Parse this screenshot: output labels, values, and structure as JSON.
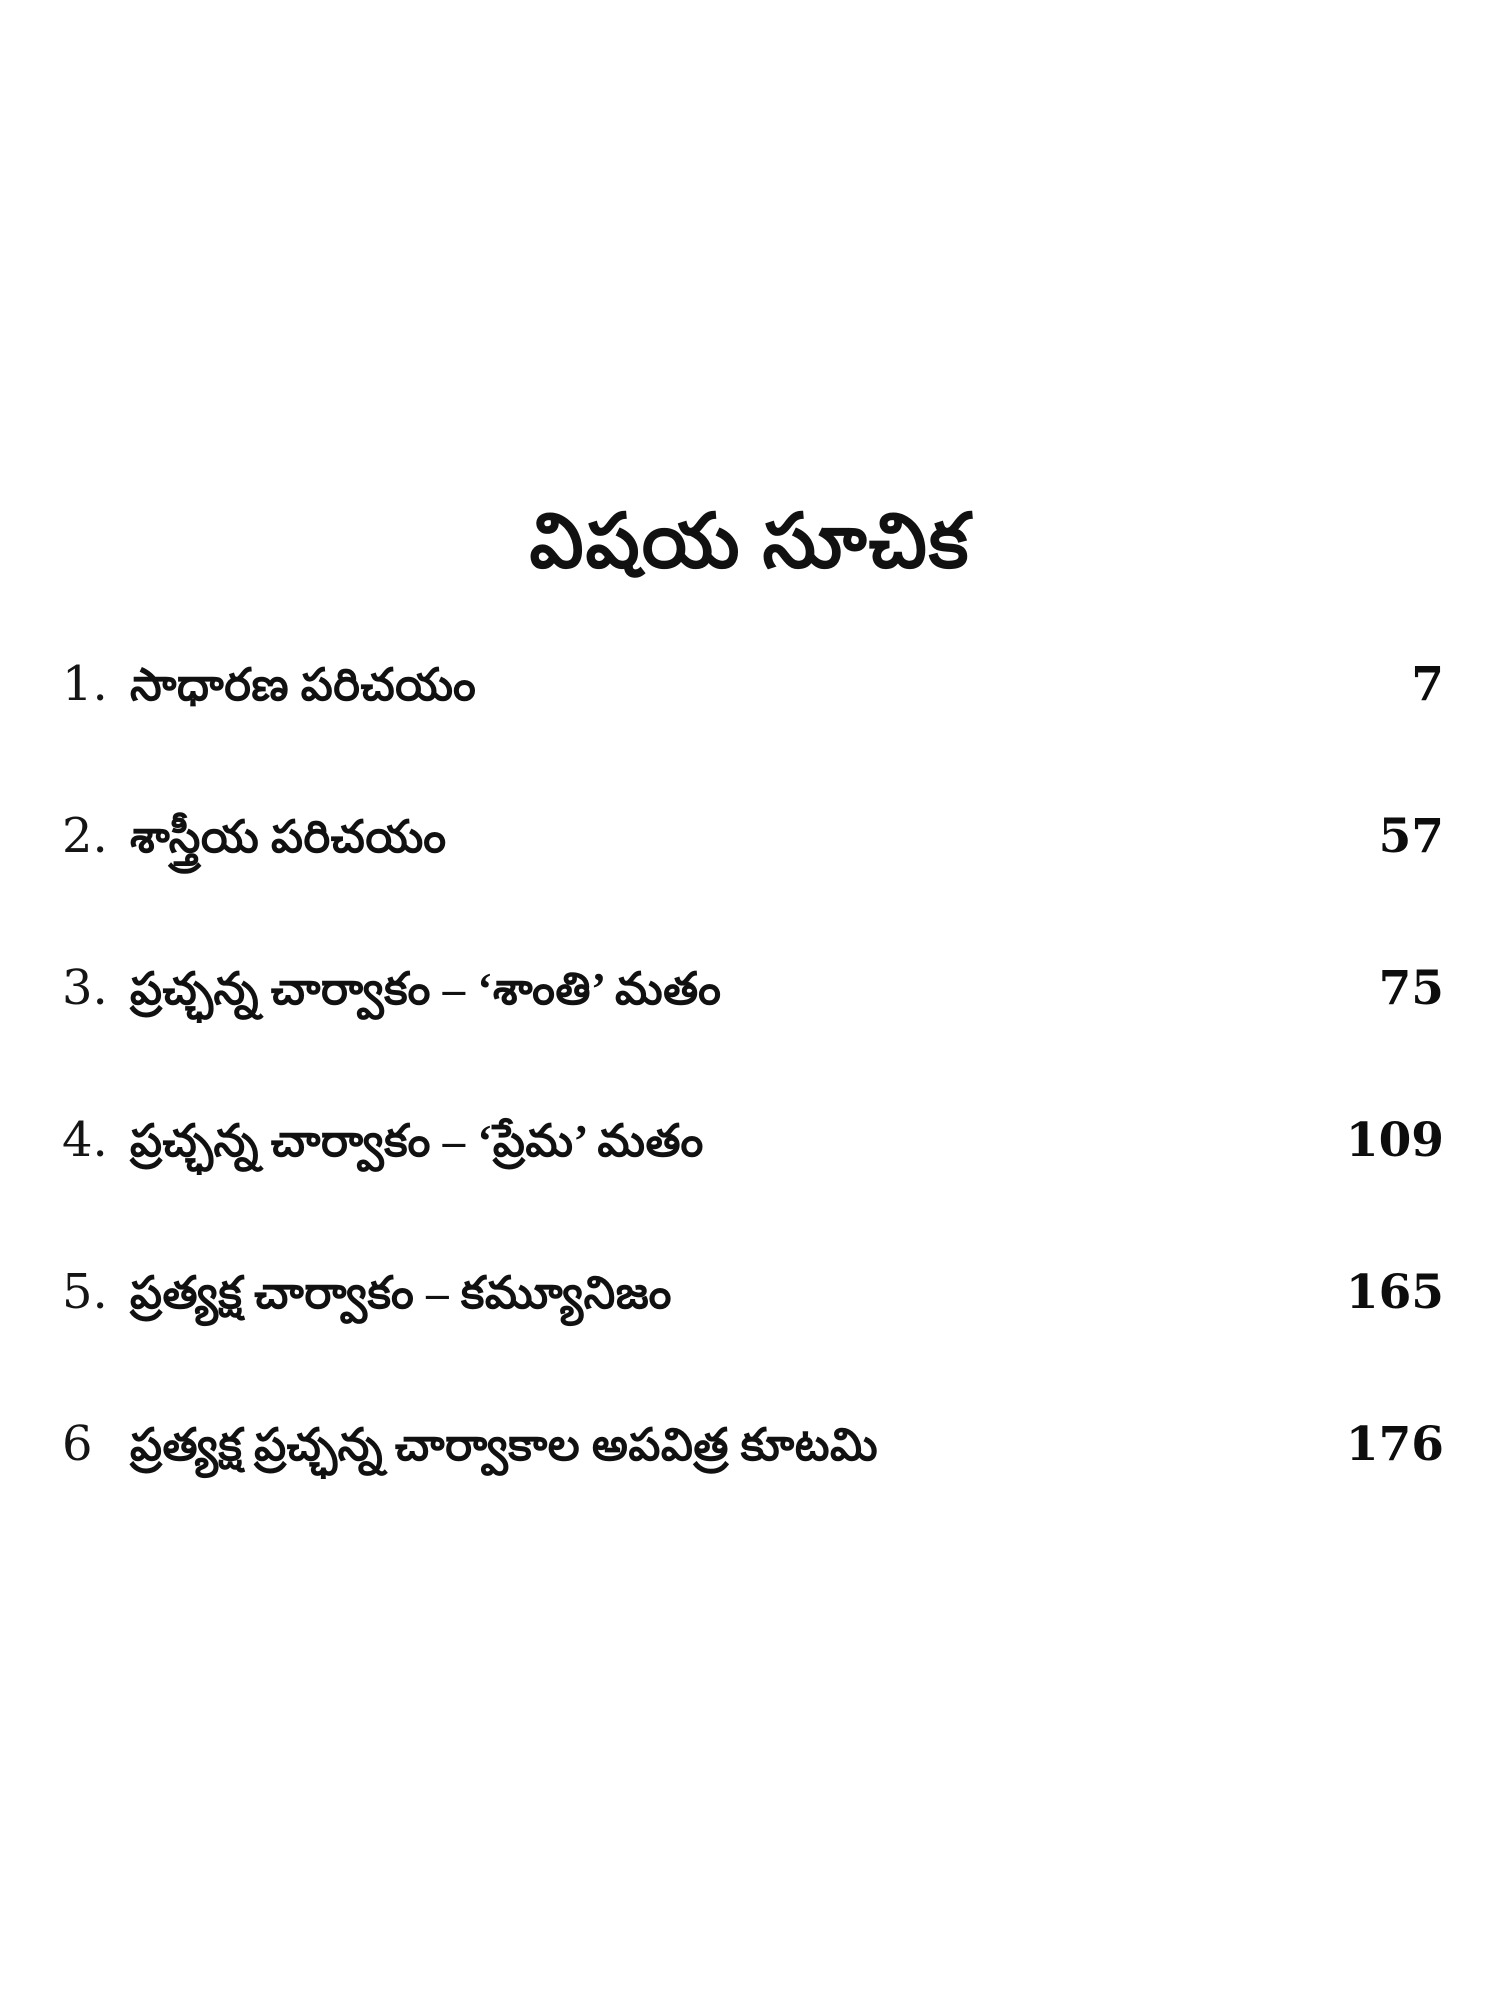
{
  "page": {
    "title": "విషయ సూచిక"
  },
  "toc": {
    "items": [
      {
        "number": "1.",
        "label": "సాధారణ పరిచయం",
        "page": "7"
      },
      {
        "number": "2.",
        "label": "శాస్త్రీయ పరిచయం",
        "page": "57"
      },
      {
        "number": "3.",
        "label": "ప్రచ్ఛన్న చార్వాకం – ‘శాంతి’ మతం",
        "page": "75"
      },
      {
        "number": "4.",
        "label": "ప్రచ్ఛన్న చార్వాకం – ‘ప్రేమ’ మతం",
        "page": "109"
      },
      {
        "number": "5.",
        "label": "ప్రత్యక్ష చార్వాకం – కమ్యూనిజం",
        "page": "165"
      },
      {
        "number": "6",
        "label": "ప్రత్యక్ష ప్రచ్ఛన్న చార్వాకాల అపవిత్ర కూటమి",
        "page": "176"
      }
    ]
  },
  "colors": {
    "text": "#111111",
    "background": "#ffffff"
  }
}
